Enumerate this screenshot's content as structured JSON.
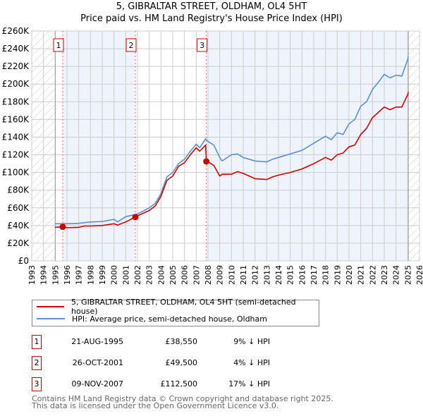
{
  "title_line1": "5, GIBRALTAR STREET, OLDHAM, OL4 5HT",
  "title_line2": "Price paid vs. HM Land Registry's House Price Index (HPI)",
  "colors": {
    "price_paid": "#cc0000",
    "hpi": "#5b8fd0",
    "shade": "#eef3fc",
    "grid": "#cccccc"
  },
  "chart_data": {
    "type": "line",
    "title": "Price paid vs. HM Land Registry's House Price Index (HPI)",
    "xlim": [
      1993,
      2026
    ],
    "ylim": [
      0,
      260000
    ],
    "x_ticks": [
      "1993",
      "1994",
      "1995",
      "1996",
      "1997",
      "1998",
      "1999",
      "2000",
      "2001",
      "2002",
      "2003",
      "2004",
      "2005",
      "2006",
      "2007",
      "2008",
      "2009",
      "2010",
      "2011",
      "2012",
      "2013",
      "2014",
      "2015",
      "2016",
      "2017",
      "2018",
      "2019",
      "2020",
      "2021",
      "2022",
      "2023",
      "2024",
      "2025",
      "2026"
    ],
    "y_ticks": [
      "£0",
      "£20K",
      "£40K",
      "£60K",
      "£80K",
      "£100K",
      "£120K",
      "£140K",
      "£160K",
      "£180K",
      "£200K",
      "£220K",
      "£240K",
      "£260K"
    ],
    "grid": true,
    "data_range": [
      1995.0,
      2025.05
    ],
    "series": [
      {
        "name": "5, GIBRALTAR STREET, OLDHAM, OL4 5HT (semi-detached house)",
        "x": [
          1995.0,
          1995.64,
          1996,
          1997,
          1997.5,
          1998,
          1999,
          2000,
          2000.3,
          2001,
          2001.82,
          2002,
          2003,
          2003.5,
          2004,
          2004.5,
          2005,
          2005.5,
          2006,
          2006.5,
          2007,
          2007.3,
          2007.8,
          2007.86,
          2008,
          2008.5,
          2009,
          2009.2,
          2010,
          2010.5,
          2011,
          2012,
          2013,
          2013.5,
          2014,
          2015,
          2016,
          2017,
          2018,
          2018.5,
          2019,
          2019.5,
          2020,
          2020.5,
          2021,
          2021.5,
          2022,
          2022.5,
          2023,
          2023.5,
          2024,
          2024.5,
          2025,
          2025.05
        ],
        "y": [
          38000,
          38550,
          37500,
          38000,
          39500,
          39500,
          40000,
          42000,
          40500,
          44000,
          49500,
          51000,
          57000,
          62000,
          73000,
          91000,
          96000,
          107000,
          111000,
          120000,
          128000,
          124000,
          131000,
          112500,
          112000,
          108000,
          96000,
          98000,
          98000,
          101000,
          99000,
          93000,
          92000,
          95000,
          97000,
          100000,
          104000,
          110000,
          117000,
          114000,
          120000,
          122000,
          129000,
          131000,
          143000,
          150000,
          162000,
          168000,
          174000,
          171000,
          174000,
          174000,
          188000,
          191000
        ]
      },
      {
        "name": "HPI: Average price, semi-detached house, Oldham",
        "x": [
          1995.0,
          1996,
          1997,
          1998,
          1999,
          2000,
          2000.3,
          2001,
          2002,
          2003,
          2003.5,
          2004,
          2004.5,
          2005,
          2005.5,
          2006,
          2006.5,
          2007,
          2007.3,
          2007.8,
          2008,
          2008.5,
          2009,
          2009.2,
          2010,
          2010.5,
          2011,
          2012,
          2013,
          2013.5,
          2014,
          2015,
          2016,
          2017,
          2018,
          2018.5,
          2019,
          2019.5,
          2020,
          2020.5,
          2021,
          2021.5,
          2022,
          2022.5,
          2023,
          2023.5,
          2024,
          2024.5,
          2025,
          2025.05
        ],
        "y": [
          42000,
          42000,
          42500,
          44000,
          44500,
          47000,
          44000,
          50000,
          53000,
          60000,
          65000,
          76000,
          95000,
          100000,
          110000,
          115000,
          124000,
          132000,
          128000,
          138000,
          135000,
          131000,
          117000,
          113000,
          120000,
          121000,
          117000,
          113000,
          112000,
          115000,
          117000,
          121000,
          125000,
          133000,
          141000,
          137000,
          145000,
          143000,
          155000,
          160000,
          175000,
          180000,
          194000,
          202000,
          211000,
          207000,
          210000,
          209000,
          228000,
          231000
        ]
      }
    ],
    "sales": [
      {
        "label": "1",
        "x": 1995.64,
        "y": 38550
      },
      {
        "label": "2",
        "x": 2001.82,
        "y": 49500
      },
      {
        "label": "3",
        "x": 2007.86,
        "y": 112500
      }
    ]
  },
  "legend": [
    "5, GIBRALTAR STREET, OLDHAM, OL4 5HT (semi-detached house)",
    "HPI: Average price, semi-detached house, Oldham"
  ],
  "transactions": [
    {
      "num": "1",
      "date": "21-AUG-1995",
      "price": "£38,550",
      "hpi": "9% ↓ HPI"
    },
    {
      "num": "2",
      "date": "26-OCT-2001",
      "price": "£49,500",
      "hpi": "4% ↓ HPI"
    },
    {
      "num": "3",
      "date": "09-NOV-2007",
      "price": "£112,500",
      "hpi": "17% ↓ HPI"
    }
  ],
  "footer_line1": "Contains HM Land Registry data © Crown copyright and database right 2025.",
  "footer_line2": "This data is licensed under the Open Government Licence v3.0."
}
